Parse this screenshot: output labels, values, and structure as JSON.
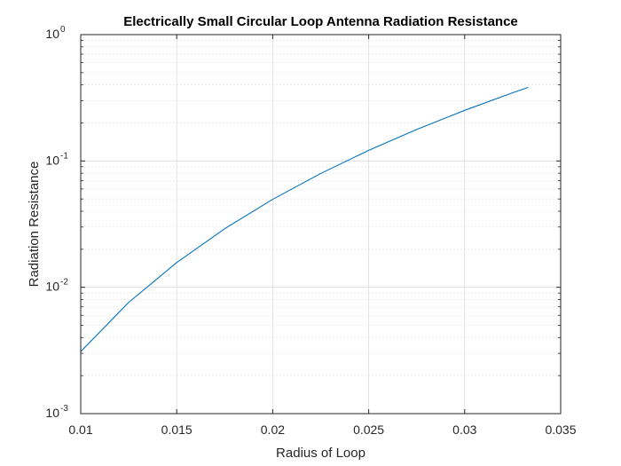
{
  "chart_data": {
    "type": "line",
    "title": "Electrically Small Circular Loop Antenna Radiation Resistance",
    "xlabel": "Radius of Loop",
    "ylabel": "Radiation Resistance",
    "xlim": [
      0.01,
      0.035
    ],
    "ylim": [
      0.001,
      1
    ],
    "yscale": "log",
    "grid": true,
    "minor_grid": true,
    "x_ticks": [
      0.01,
      0.015,
      0.02,
      0.025,
      0.03,
      0.035
    ],
    "x_tick_labels": [
      "0.01",
      "0.015",
      "0.02",
      "0.025",
      "0.03",
      "0.035"
    ],
    "y_ticks": [
      0.001,
      0.01,
      0.1,
      1
    ],
    "y_tick_labels": [
      {
        "base": "10",
        "exp": "-3"
      },
      {
        "base": "10",
        "exp": "-2"
      },
      {
        "base": "10",
        "exp": "-1"
      },
      {
        "base": "10",
        "exp": "0"
      }
    ],
    "series": [
      {
        "color": "#0072bd",
        "x": [
          0.01,
          0.0125,
          0.015,
          0.0175,
          0.02,
          0.0225,
          0.025,
          0.0275,
          0.03,
          0.0325,
          0.0333
        ],
        "y": [
          0.0031,
          0.0076,
          0.0157,
          0.0291,
          0.0497,
          0.0796,
          0.1213,
          0.1776,
          0.2515,
          0.3465,
          0.3821
        ]
      }
    ]
  }
}
